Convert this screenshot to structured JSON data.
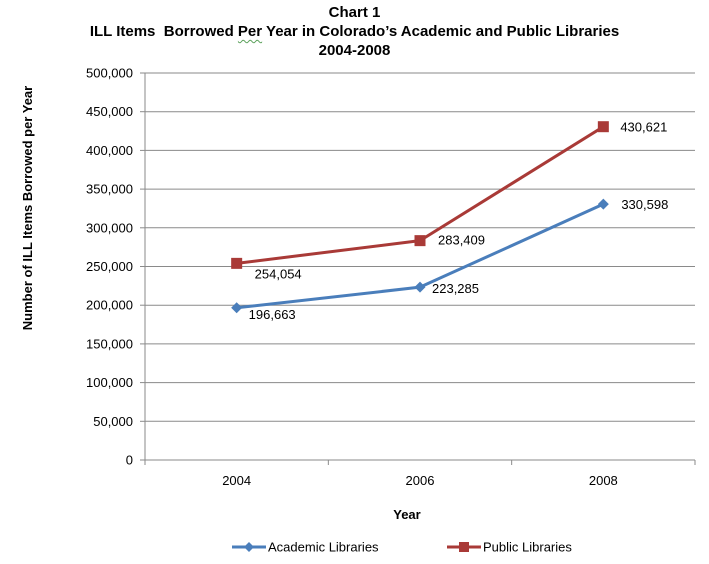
{
  "chart_data": {
    "type": "line",
    "title_line1": "Chart 1",
    "title_line2_part1": "ILL Items",
    "title_line2_part2": "Borrowed",
    "title_line2_part3": "Per",
    "title_line2_part4": "Year in Colorado’s Academic and Public Libraries",
    "title_line3": "2004-2008",
    "xlabel": "Year",
    "ylabel": "Number of ILL Items Borrowed per Year",
    "categories": [
      "2004",
      "2006",
      "2008"
    ],
    "ylim": [
      0,
      500000
    ],
    "ytick_step": 50000,
    "yticks": [
      "0",
      "50,000",
      "100,000",
      "150,000",
      "200,000",
      "250,000",
      "300,000",
      "350,000",
      "400,000",
      "450,000",
      "500,000"
    ],
    "grid": true,
    "legend_position": "bottom",
    "series": [
      {
        "name": "Academic Libraries",
        "values": [
          196663,
          223285,
          330598
        ],
        "labels": [
          "196,663",
          "223,285",
          "330,598"
        ],
        "color": "#4a7ebb",
        "marker": "diamond"
      },
      {
        "name": "Public Libraries",
        "values": [
          254054,
          283409,
          430621
        ],
        "labels": [
          "254,054",
          "283,409",
          "430,621"
        ],
        "color": "#a93a37",
        "marker": "square"
      }
    ]
  }
}
